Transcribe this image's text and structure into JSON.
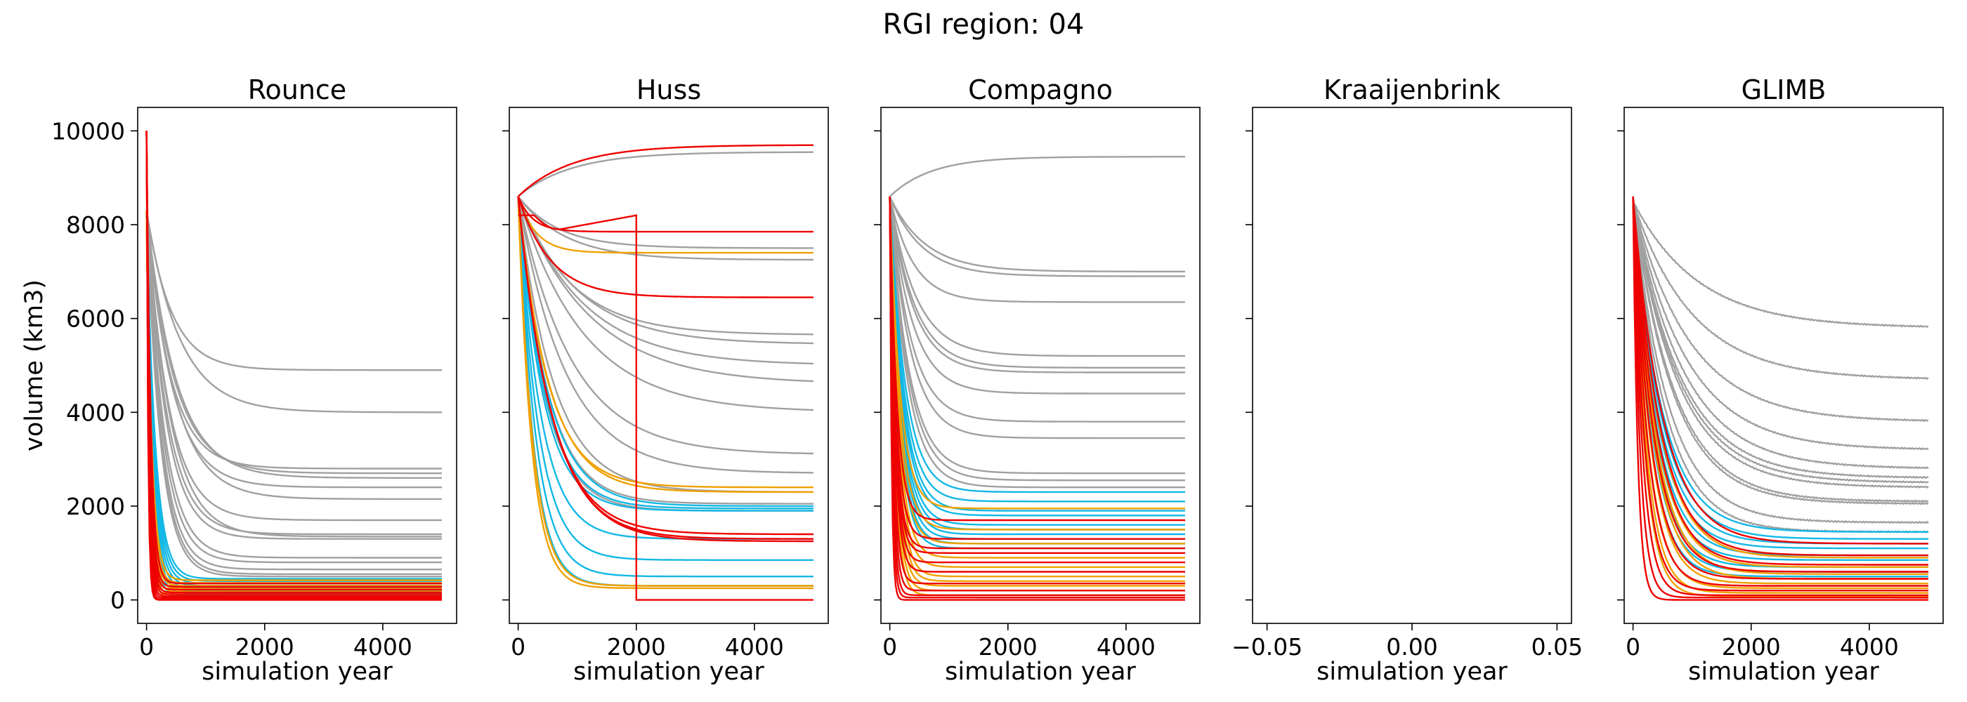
{
  "figure": {
    "suptitle": "RGI region: 04"
  },
  "colors": {
    "gray": "#a0a0a0",
    "cyan": "#12b8e6",
    "orange": "#f0a000",
    "red": "#ee0000"
  },
  "chart_data": [
    {
      "type": "line",
      "title": "Rounce",
      "xlabel": "simulation year",
      "ylabel": "volume (km3)",
      "xlim": [
        -150,
        5250
      ],
      "ylim": [
        -500,
        10500
      ],
      "xticks": [
        0,
        2000,
        4000
      ],
      "xtick_labels": [
        "0",
        "2000",
        "4000"
      ],
      "yticks": [
        0,
        2000,
        4000,
        6000,
        8000,
        10000
      ],
      "ytick_labels": [
        "0",
        "2000",
        "4000",
        "6000",
        "8000",
        "10000"
      ],
      "series_groups": {
        "gray": {
          "start": 8300,
          "finals": [
            4900,
            4000,
            2800,
            2700,
            2600,
            2400,
            2150,
            1700,
            1400,
            1350,
            1300,
            900,
            800,
            650,
            550,
            500
          ],
          "taus": [
            420,
            560,
            400,
            460,
            500,
            430,
            470,
            380,
            350,
            400,
            330,
            300,
            280,
            260,
            250,
            240
          ]
        },
        "cyan": {
          "start": 8200,
          "finals": [
            450,
            400,
            350,
            300,
            250,
            200,
            150,
            100
          ],
          "taus": [
            150,
            140,
            130,
            120,
            110,
            100,
            90,
            80
          ]
        },
        "orange": {
          "start": 8300,
          "finals": [
            420,
            360,
            300,
            240,
            180,
            120,
            60
          ],
          "taus": [
            90,
            80,
            75,
            70,
            65,
            60,
            55
          ]
        },
        "red": {
          "start": 10000,
          "finals": [
            350,
            280,
            220,
            160,
            120,
            80,
            50,
            20,
            10,
            0
          ],
          "taus": [
            70,
            60,
            55,
            50,
            45,
            40,
            35,
            30,
            28,
            25
          ]
        }
      }
    },
    {
      "type": "line",
      "title": "Huss",
      "xlabel": "simulation year",
      "ylabel": "",
      "xlim": [
        -150,
        5250
      ],
      "ylim": [
        -500,
        10500
      ],
      "xticks": [
        0,
        2000,
        4000
      ],
      "xtick_labels": [
        "0",
        "2000",
        "4000"
      ],
      "yticks": [
        0,
        2000,
        4000,
        6000,
        8000,
        10000
      ],
      "ytick_labels": [
        "",
        "",
        "",
        "",
        "",
        ""
      ],
      "series_groups": {
        "gray": {
          "start": 8600,
          "finals": [
            9550,
            7500,
            7250,
            5650,
            5450,
            5000,
            4600,
            4000,
            3100,
            2700,
            2300,
            2050,
            1900
          ],
          "taus": [
            900,
            700,
            800,
            900,
            1000,
            1100,
            1200,
            1100,
            900,
            800,
            600,
            500,
            450
          ]
        },
        "cyan": {
          "start": 8600,
          "finals": [
            2000,
            1950,
            1900,
            1300,
            850,
            500,
            300
          ],
          "taus": [
            500,
            450,
            420,
            380,
            340,
            300,
            260
          ]
        },
        "orange": {
          "start": 8600,
          "finals": [
            7400,
            2400,
            2300,
            300,
            250
          ],
          "taus": [
            300,
            500,
            520,
            250,
            230
          ]
        },
        "red": {
          "start": 8600,
          "finals": [
            9700,
            7850,
            6450,
            1400,
            1300,
            1250
          ],
          "taus": [
            900,
            250,
            550,
            550,
            560,
            570
          ]
        },
        "drop": {
          "finals": [
            8200,
            0
          ],
          "drop_year": 2000
        }
      }
    },
    {
      "type": "line",
      "title": "Compagno",
      "xlabel": "simulation year",
      "ylabel": "",
      "xlim": [
        -150,
        5250
      ],
      "ylim": [
        -500,
        10500
      ],
      "xticks": [
        0,
        2000,
        4000
      ],
      "xtick_labels": [
        "0",
        "2000",
        "4000"
      ],
      "yticks": [
        0,
        2000,
        4000,
        6000,
        8000,
        10000
      ],
      "ytick_labels": [
        "",
        "",
        "",
        "",
        "",
        ""
      ],
      "series_groups": {
        "gray": {
          "start": 8600,
          "finals": [
            9450,
            7000,
            6900,
            6350,
            5200,
            4950,
            4850,
            4400,
            3800,
            3450,
            2700,
            2550,
            2400
          ],
          "taus": [
            700,
            600,
            550,
            400,
            450,
            420,
            400,
            380,
            360,
            350,
            330,
            320,
            300
          ]
        },
        "cyan": {
          "start": 8600,
          "finals": [
            2300,
            2100,
            1900,
            1800,
            1600,
            1500,
            1400,
            1300,
            1200,
            1100
          ],
          "taus": [
            260,
            240,
            230,
            220,
            210,
            200,
            190,
            180,
            170,
            160
          ]
        },
        "orange": {
          "start": 8600,
          "finals": [
            1950,
            1500,
            1200,
            900,
            700,
            500,
            400,
            300,
            200,
            100
          ],
          "taus": [
            180,
            170,
            160,
            150,
            140,
            130,
            120,
            110,
            100,
            90
          ]
        },
        "red": {
          "start": 8600,
          "finals": [
            1700,
            1300,
            1100,
            1000,
            800,
            600,
            350,
            200,
            100,
            50,
            0
          ],
          "taus": [
            120,
            110,
            100,
            95,
            90,
            85,
            70,
            60,
            50,
            40,
            30
          ]
        }
      }
    },
    {
      "type": "line",
      "title": "Kraaijenbrink",
      "xlabel": "simulation year",
      "ylabel": "",
      "xlim": [
        -0.055,
        0.055
      ],
      "ylim": [
        -500,
        10500
      ],
      "xticks": [
        -0.05,
        0.0,
        0.05
      ],
      "xtick_labels": [
        "−0.05",
        "0.00",
        "0.05"
      ],
      "yticks": [
        0,
        2000,
        4000,
        6000,
        8000,
        10000
      ],
      "ytick_labels": [
        "",
        "",
        "",
        "",
        "",
        ""
      ],
      "series_groups": {}
    },
    {
      "type": "line",
      "title": "GLIMB",
      "xlabel": "simulation year",
      "ylabel": "",
      "xlim": [
        -150,
        5250
      ],
      "ylim": [
        -500,
        10500
      ],
      "xticks": [
        0,
        2000,
        4000
      ],
      "xtick_labels": [
        "0",
        "2000",
        "4000"
      ],
      "yticks": [
        0,
        2000,
        4000,
        6000,
        8000,
        10000
      ],
      "ytick_labels": [
        "",
        "",
        "",
        "",
        "",
        ""
      ],
      "series_groups": {
        "gray": {
          "start": 8500,
          "finals": [
            5800,
            4700,
            3800,
            3200,
            2800,
            2600,
            2500,
            2400,
            2100,
            2050,
            1650,
            1450
          ],
          "taus": [
            1100,
            1000,
            950,
            900,
            850,
            800,
            780,
            760,
            700,
            680,
            600,
            550
          ]
        },
        "cyan": {
          "start": 8400,
          "finals": [
            1450,
            1300,
            1200,
            1100,
            950,
            850,
            700,
            600,
            500
          ],
          "taus": [
            500,
            480,
            450,
            420,
            400,
            380,
            350,
            330,
            300
          ]
        },
        "orange": {
          "start": 8500,
          "finals": [
            900,
            700,
            550,
            450,
            350,
            250,
            150,
            80
          ],
          "taus": [
            450,
            400,
            380,
            350,
            300,
            260,
            230,
            200
          ]
        },
        "red": {
          "start": 8600,
          "finals": [
            1200,
            950,
            750,
            600,
            450,
            300,
            200,
            100,
            50,
            0
          ],
          "taus": [
            500,
            450,
            400,
            350,
            300,
            250,
            200,
            160,
            120,
            80
          ]
        }
      }
    }
  ]
}
